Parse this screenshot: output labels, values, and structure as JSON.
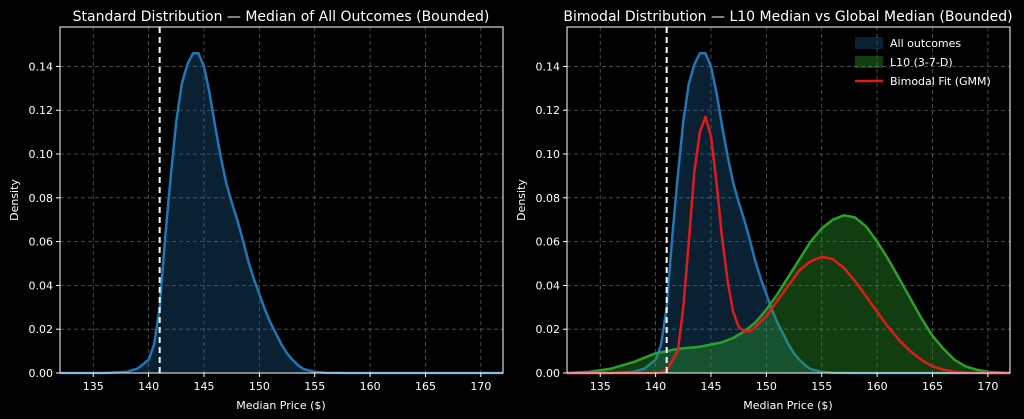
{
  "colors": {
    "background": "#000000",
    "text": "#ffffff",
    "grid": "#5a5a5a",
    "all_outcomes": "#1f77b4",
    "l10": "#2ca02c",
    "gmm": "#e31a1c",
    "reference_line": "#ffffff"
  },
  "chart_data": [
    {
      "type": "area",
      "title": "Standard Distribution — Median of All Outcomes (Bounded)",
      "xlabel": "Median Price ($)",
      "ylabel": "Density",
      "xlim": [
        132,
        172
      ],
      "ylim": [
        0,
        0.158
      ],
      "xticks": [
        135,
        140,
        145,
        150,
        155,
        160,
        165,
        170
      ],
      "yticks": [
        0.0,
        0.02,
        0.04,
        0.06,
        0.08,
        0.1,
        0.12,
        0.14
      ],
      "grid": true,
      "reference_line_x": 141.0,
      "series": [
        {
          "key": "all",
          "x": [
            132,
            136,
            138,
            139,
            140,
            140.5,
            141,
            141.5,
            142,
            142.5,
            143,
            143.5,
            144,
            144.5,
            145,
            145.5,
            146,
            146.5,
            147,
            147.5,
            148,
            148.5,
            149,
            149.5,
            150,
            150.5,
            151,
            151.5,
            152,
            152.5,
            153,
            153.5,
            154,
            155,
            156,
            158,
            172
          ],
          "y": [
            0.0,
            0.0,
            0.0005,
            0.002,
            0.006,
            0.013,
            0.03,
            0.062,
            0.09,
            0.115,
            0.132,
            0.141,
            0.146,
            0.146,
            0.14,
            0.128,
            0.113,
            0.099,
            0.087,
            0.078,
            0.07,
            0.061,
            0.051,
            0.043,
            0.036,
            0.029,
            0.023,
            0.018,
            0.013,
            0.009,
            0.006,
            0.0035,
            0.0018,
            0.0005,
            0.0001,
            0.0,
            0.0
          ]
        }
      ]
    },
    {
      "type": "area",
      "title": "Bimodal Distribution — L10 Median vs Global Median (Bounded)",
      "xlabel": "Median Price ($)",
      "ylabel": "Density",
      "xlim": [
        132,
        172
      ],
      "ylim": [
        0,
        0.158
      ],
      "xticks": [
        135,
        140,
        145,
        150,
        155,
        160,
        165,
        170
      ],
      "yticks": [
        0.0,
        0.02,
        0.04,
        0.06,
        0.08,
        0.1,
        0.12,
        0.14
      ],
      "grid": true,
      "legend_position": "top-right",
      "reference_line_x": 141.0,
      "series": [
        {
          "key": "all",
          "name": "All outcomes",
          "x": [
            132,
            136,
            138,
            139,
            140,
            140.5,
            141,
            141.5,
            142,
            142.5,
            143,
            143.5,
            144,
            144.5,
            145,
            145.5,
            146,
            146.5,
            147,
            147.5,
            148,
            148.5,
            149,
            149.5,
            150,
            150.5,
            151,
            151.5,
            152,
            152.5,
            153,
            153.5,
            154,
            155,
            156,
            158,
            172
          ],
          "y": [
            0.0,
            0.0,
            0.0005,
            0.002,
            0.006,
            0.013,
            0.03,
            0.062,
            0.09,
            0.115,
            0.132,
            0.141,
            0.146,
            0.146,
            0.14,
            0.128,
            0.113,
            0.099,
            0.087,
            0.078,
            0.07,
            0.061,
            0.051,
            0.043,
            0.036,
            0.029,
            0.023,
            0.018,
            0.013,
            0.009,
            0.006,
            0.0035,
            0.0018,
            0.0005,
            0.0001,
            0.0,
            0.0
          ]
        },
        {
          "key": "l10",
          "name": "L10 (3-7-D)",
          "x": [
            132,
            134,
            136,
            138,
            140,
            142,
            144,
            145,
            146,
            147,
            148,
            149,
            150,
            151,
            152,
            153,
            154,
            155,
            156,
            157,
            158,
            159,
            160,
            161,
            162,
            163,
            164,
            165,
            166,
            167,
            168,
            169,
            170,
            172
          ],
          "y": [
            0.0,
            0.0005,
            0.002,
            0.005,
            0.009,
            0.011,
            0.012,
            0.013,
            0.014,
            0.016,
            0.019,
            0.023,
            0.029,
            0.036,
            0.044,
            0.052,
            0.06,
            0.066,
            0.07,
            0.072,
            0.071,
            0.067,
            0.06,
            0.052,
            0.043,
            0.034,
            0.025,
            0.017,
            0.011,
            0.006,
            0.003,
            0.0015,
            0.0005,
            0.0
          ]
        },
        {
          "key": "gmm",
          "name": "Bimodal Fit (GMM)",
          "x": [
            132,
            140,
            141,
            142,
            142.5,
            143,
            143.5,
            144,
            144.5,
            145,
            145.5,
            146,
            146.5,
            147,
            147.5,
            148,
            148.5,
            149,
            150,
            151,
            152,
            153,
            154,
            155,
            156,
            157,
            158,
            159,
            160,
            161,
            162,
            163,
            164,
            165,
            166,
            167,
            168,
            170,
            172
          ],
          "y": [
            0.0,
            0.0,
            0.001,
            0.01,
            0.03,
            0.06,
            0.092,
            0.11,
            0.117,
            0.108,
            0.087,
            0.062,
            0.042,
            0.028,
            0.021,
            0.019,
            0.019,
            0.021,
            0.026,
            0.033,
            0.04,
            0.047,
            0.051,
            0.053,
            0.052,
            0.048,
            0.042,
            0.035,
            0.028,
            0.021,
            0.015,
            0.01,
            0.006,
            0.003,
            0.0015,
            0.0006,
            0.0002,
            0.0,
            0.0
          ]
        }
      ]
    }
  ]
}
